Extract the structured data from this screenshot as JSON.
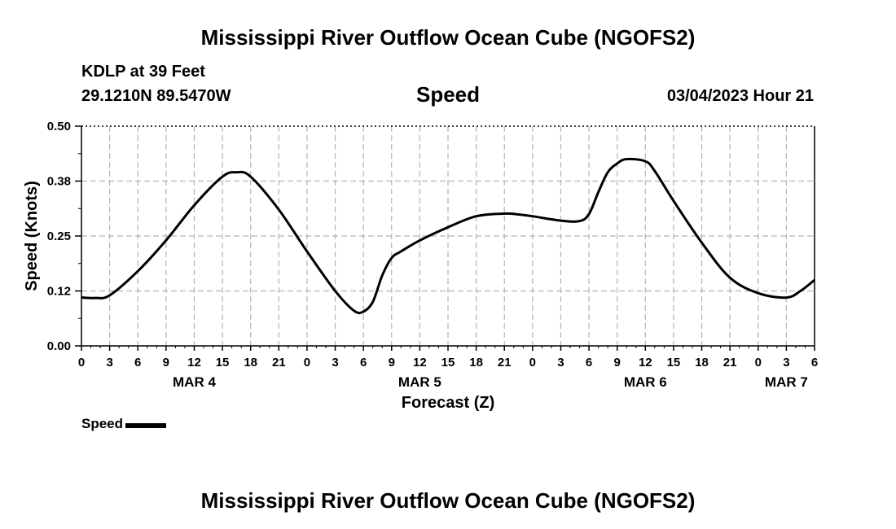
{
  "header": {
    "title": "Mississippi River Outflow Ocean Cube (NGOFS2)",
    "station": "KDLP at 39 Feet",
    "coords": "29.1210N  89.5470W",
    "variable": "Speed",
    "datetime": "03/04/2023 Hour 21"
  },
  "footer": {
    "title": "Mississippi River Outflow Ocean Cube (NGOFS2)"
  },
  "legend": {
    "label": "Speed"
  },
  "colors": {
    "line": "#000000",
    "grid": "#b4b4b4",
    "background": "#ffffff"
  },
  "chart_data": {
    "type": "line",
    "title": "Speed",
    "xlabel": "Forecast (Z)",
    "ylabel": "Speed (Knots)",
    "xlim": [
      0,
      78
    ],
    "ylim": [
      0,
      0.5
    ],
    "yticks": [
      0.0,
      0.125,
      0.25,
      0.375,
      0.5
    ],
    "ytick_labels": [
      "0.00",
      "0.12",
      "0.25",
      "0.38",
      "0.50"
    ],
    "xticks": [
      0,
      3,
      6,
      9,
      12,
      15,
      18,
      21,
      24,
      27,
      30,
      33,
      36,
      39,
      42,
      45,
      48,
      51,
      54,
      57,
      60,
      63,
      66,
      69,
      72,
      75,
      78
    ],
    "xtick_labels": [
      "0",
      "3",
      "6",
      "9",
      "12",
      "15",
      "18",
      "21",
      "0",
      "3",
      "6",
      "9",
      "12",
      "15",
      "18",
      "21",
      "0",
      "3",
      "6",
      "9",
      "12",
      "15",
      "18",
      "21",
      "0",
      "3",
      "6"
    ],
    "day_labels": [
      {
        "hour": 12,
        "label": "MAR 4"
      },
      {
        "hour": 36,
        "label": "MAR 5"
      },
      {
        "hour": 60,
        "label": "MAR 6"
      },
      {
        "hour": 75,
        "label": "MAR 7"
      }
    ],
    "grid": true,
    "series": [
      {
        "name": "Speed",
        "x": [
          0,
          1.5,
          3,
          6,
          9,
          12,
          15,
          16.5,
          18,
          21,
          24,
          27,
          29,
          30,
          31,
          32,
          33,
          34,
          36,
          39,
          42,
          45,
          46.5,
          48,
          51,
          53,
          54,
          55,
          56,
          57,
          58,
          60,
          61,
          63,
          66,
          69,
          72,
          75,
          76.5,
          78
        ],
        "y": [
          0.11,
          0.109,
          0.115,
          0.17,
          0.24,
          0.32,
          0.385,
          0.395,
          0.385,
          0.31,
          0.215,
          0.125,
          0.08,
          0.078,
          0.1,
          0.16,
          0.2,
          0.215,
          0.24,
          0.27,
          0.295,
          0.301,
          0.299,
          0.295,
          0.285,
          0.284,
          0.3,
          0.35,
          0.395,
          0.415,
          0.425,
          0.42,
          0.398,
          0.33,
          0.235,
          0.155,
          0.12,
          0.11,
          0.125,
          0.15
        ]
      }
    ]
  },
  "labels": {
    "xlabel": "Forecast (Z)",
    "ylabel": "Speed (Knots)"
  }
}
